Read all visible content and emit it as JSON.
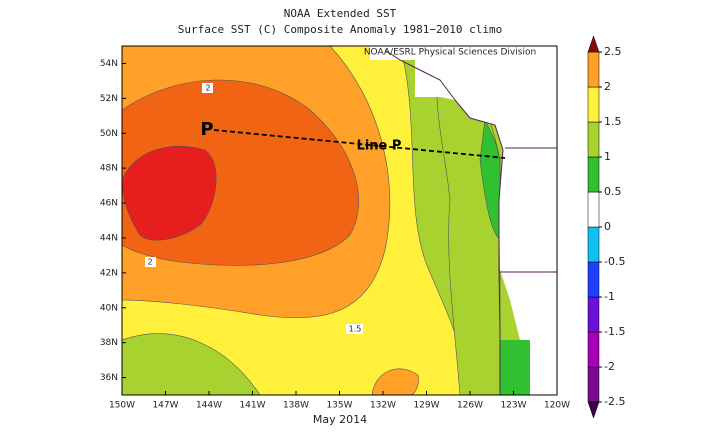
{
  "title": "NOAA Extended SST",
  "subtitle": "Surface SST (C) Composite Anomaly 1981−2010 climo",
  "credit": "NOAA/ESRL Physical Sciences Division",
  "xlabel": "May 2014",
  "station": "P",
  "line_label": "Line P",
  "contour_labels": [
    "2",
    "2",
    "1.5"
  ],
  "xlim": [
    -150,
    -120
  ],
  "ylim": [
    35,
    55
  ],
  "lon_ticks": [
    {
      "value": -150,
      "label": "150W"
    },
    {
      "value": -147,
      "label": "147W"
    },
    {
      "value": -144,
      "label": "144W"
    },
    {
      "value": -141,
      "label": "141W"
    },
    {
      "value": -138,
      "label": "138W"
    },
    {
      "value": -135,
      "label": "135W"
    },
    {
      "value": -132,
      "label": "132W"
    },
    {
      "value": -129,
      "label": "129W"
    },
    {
      "value": -126,
      "label": "126W"
    },
    {
      "value": -123,
      "label": "123W"
    },
    {
      "value": -120,
      "label": "120W"
    }
  ],
  "lat_ticks": [
    {
      "value": 36,
      "label": "36N"
    },
    {
      "value": 38,
      "label": "38N"
    },
    {
      "value": 40,
      "label": "40N"
    },
    {
      "value": 42,
      "label": "42N"
    },
    {
      "value": 44,
      "label": "44N"
    },
    {
      "value": 46,
      "label": "46N"
    },
    {
      "value": 48,
      "label": "48N"
    },
    {
      "value": 50,
      "label": "50N"
    },
    {
      "value": 52,
      "label": "52N"
    },
    {
      "value": 54,
      "label": "54N"
    }
  ],
  "colorbar": {
    "lim": [
      -2.5,
      2.5
    ],
    "ticks": [
      -2.5,
      -2,
      -1.5,
      -1,
      -0.5,
      0,
      0.5,
      1,
      1.5,
      2,
      2.5
    ],
    "colors": [
      "#7a0a8c",
      "#a800b8",
      "#6a10d8",
      "#2040ff",
      "#10c0f0",
      "#ffffff",
      "#30c030",
      "#a8d230",
      "#fff03c",
      "#ffa028",
      "#f05014"
    ],
    "extend_colors": [
      "#3c0046",
      "#8c0a0a"
    ]
  }
}
